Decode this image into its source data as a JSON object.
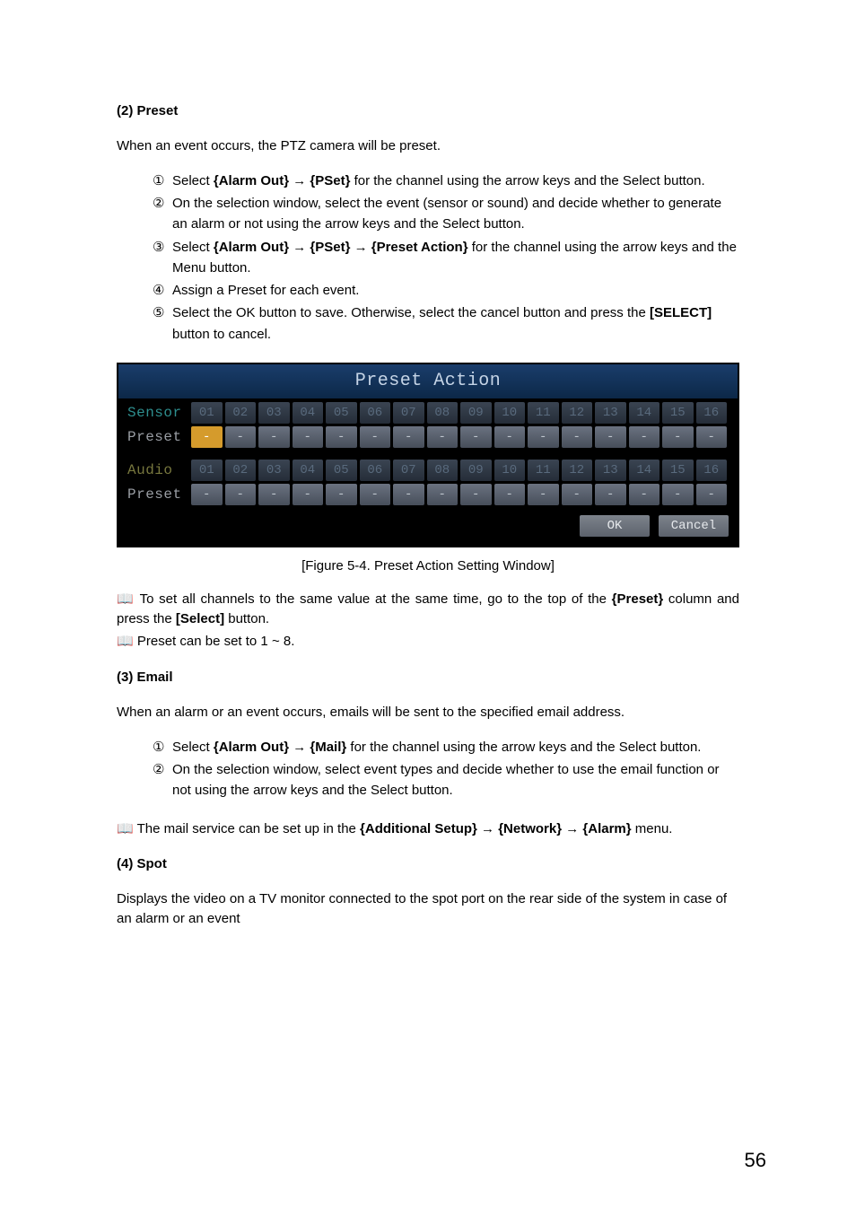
{
  "section2": {
    "heading": "(2)   Preset",
    "intro": "When an event occurs, the PTZ camera will be preset.",
    "steps": [
      {
        "num": "①",
        "parts": [
          "Select ",
          "{Alarm Out} → {PSet}",
          " for the channel using the arrow keys and the Select button."
        ]
      },
      {
        "num": "②",
        "parts": [
          "On the selection window, select the event (sensor or sound) and decide whether to generate an alarm or not using the arrow keys and the Select button."
        ]
      },
      {
        "num": "③",
        "parts": [
          "Select ",
          "{Alarm Out} → {PSet} → {Preset Action}",
          " for the channel using the arrow keys and the Menu button."
        ]
      },
      {
        "num": "④",
        "parts": [
          "Assign a Preset for each event."
        ]
      },
      {
        "num": "⑤",
        "parts": [
          "Select the OK button to save. Otherwise, select the cancel button and press the ",
          "[SELECT]",
          " button to cancel."
        ]
      }
    ]
  },
  "preset_window": {
    "title": "Preset Action",
    "title_bg_top": "#1a3d6b",
    "title_bg_bottom": "#0c2848",
    "title_color": "#c5d4e6",
    "bg": "#000000",
    "label_sensor": "Sensor",
    "label_preset": "Preset",
    "label_audio": "Audio",
    "label_color_teal": "#2e8f8f",
    "label_color_gray": "#9a9ea4",
    "label_color_olive": "#77773e",
    "numbers": [
      "01",
      "02",
      "03",
      "04",
      "05",
      "06",
      "07",
      "08",
      "09",
      "10",
      "11",
      "12",
      "13",
      "14",
      "15",
      "16"
    ],
    "num_cell_bg_top": "#3a4452",
    "num_cell_bg_bottom": "#252d38",
    "num_cell_text": "#596a7d",
    "dash_cell_bg_top": "#6a7280",
    "dash_cell_bg_bottom": "#474e5a",
    "dash_cell_text": "#bfc6ce",
    "dash": "-",
    "selected_index": 0,
    "selected_bg": "#d59b2c",
    "ok_label": "OK",
    "cancel_label": "Cancel",
    "btn_bg_top": "#7d838c",
    "btn_bg_bottom": "#5c626c",
    "btn_text": "#e6e9ec"
  },
  "caption": "[Figure 5-4. Preset Action Setting Window]",
  "note1_icon": "📖",
  "note1_pre": " To set all channels to the same value at the same time, go to the top of the ",
  "note1_bold": "{Preset}",
  "note1_mid": " column and press the ",
  "note1_bold2": "[Select]",
  "note1_post": " button.",
  "note2_icon": "📖",
  "note2": " Preset can be set to 1 ~ 8.",
  "section3": {
    "heading": "(3)   Email",
    "intro": "When an alarm or an event occurs, emails will be sent to the specified email address.",
    "steps": [
      {
        "num": "①",
        "parts": [
          "Select ",
          "{Alarm Out} → {Mail}",
          " for the channel using the arrow keys and the Select button."
        ]
      },
      {
        "num": "②",
        "parts": [
          "On the selection window, select event types and decide whether to use the email function or not using the arrow keys and the Select button."
        ]
      }
    ]
  },
  "note3_icon": "📖",
  "note3_pre": " The mail service can be set up in the ",
  "note3_bold": "{Additional Setup} → {Network} → {Alarm}",
  "note3_post": " menu.",
  "section4": {
    "heading": "(4)   Spot",
    "intro": "Displays the video on a TV monitor connected to the spot port on the rear side of the system in case of an alarm or an event"
  },
  "page_number": "56"
}
